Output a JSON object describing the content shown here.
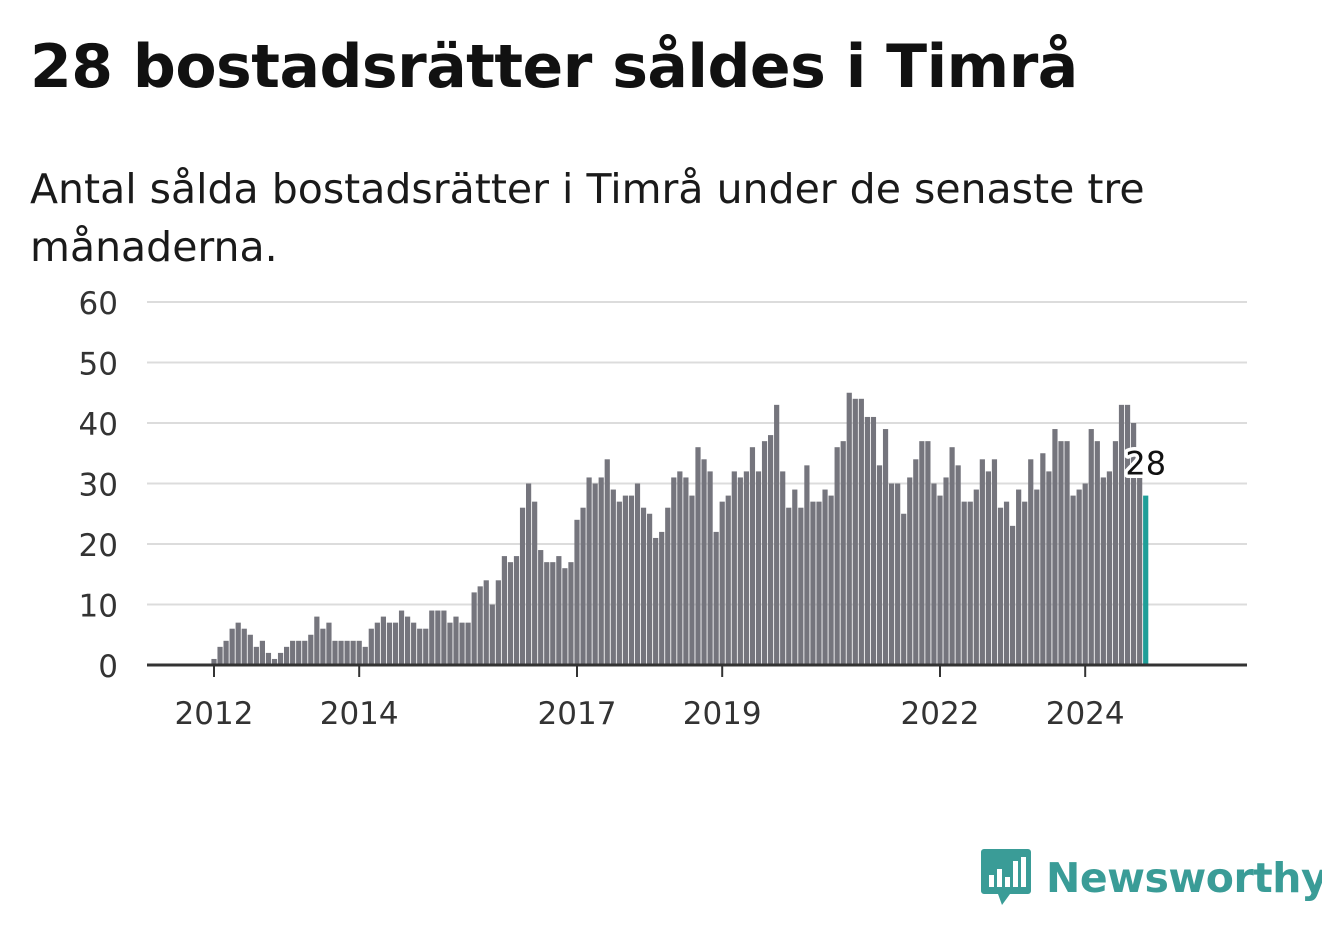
{
  "title": "28 bostadsrätter såldes i Timrå",
  "subtitle": "Antal sålda bostadsrätter i Timrå under de senaste tre månaderna.",
  "brand": {
    "name": "Newsworthy",
    "icon": "newsworthy-logo-icon",
    "color": "#3a9c97"
  },
  "colors": {
    "bar": "#75757d",
    "highlight": "#1f9e98",
    "grid": "#dcdcdc",
    "axis": "#333333"
  },
  "chart_data": {
    "type": "bar",
    "title": "",
    "xlabel": "",
    "ylabel": "",
    "ylim": [
      0,
      60
    ],
    "yticks": [
      0,
      10,
      20,
      30,
      40,
      50,
      60
    ],
    "grid": true,
    "legend": "none",
    "start_month": "2011-03",
    "xtick_labels": [
      {
        "label": "2012",
        "month": "2012-01"
      },
      {
        "label": "2014",
        "month": "2014-01"
      },
      {
        "label": "2017",
        "month": "2017-01"
      },
      {
        "label": "2019",
        "month": "2019-01"
      },
      {
        "label": "2022",
        "month": "2022-01"
      },
      {
        "label": "2024",
        "month": "2024-01"
      }
    ],
    "values": [
      0,
      0,
      0,
      0,
      0,
      0,
      0,
      0,
      0,
      0,
      1,
      3,
      4,
      6,
      7,
      6,
      5,
      3,
      4,
      2,
      1,
      2,
      3,
      4,
      4,
      4,
      5,
      8,
      6,
      7,
      4,
      4,
      4,
      4,
      4,
      3,
      6,
      7,
      8,
      7,
      7,
      9,
      8,
      7,
      6,
      6,
      9,
      9,
      9,
      7,
      8,
      7,
      7,
      12,
      13,
      14,
      10,
      14,
      18,
      17,
      18,
      26,
      30,
      27,
      19,
      17,
      17,
      18,
      16,
      17,
      24,
      26,
      31,
      30,
      31,
      34,
      29,
      27,
      28,
      28,
      30,
      26,
      25,
      21,
      22,
      26,
      31,
      32,
      31,
      28,
      36,
      34,
      32,
      22,
      27,
      28,
      32,
      31,
      32,
      36,
      32,
      37,
      38,
      43,
      32,
      26,
      29,
      26,
      33,
      27,
      27,
      29,
      28,
      36,
      37,
      45,
      44,
      44,
      41,
      41,
      33,
      39,
      30,
      30,
      25,
      31,
      34,
      37,
      37,
      30,
      28,
      31,
      36,
      33,
      27,
      27,
      29,
      34,
      32,
      34,
      26,
      27,
      23,
      29,
      27,
      34,
      29,
      35,
      32,
      39,
      37,
      37,
      28,
      29,
      30,
      39,
      37,
      31,
      32,
      37,
      43,
      43,
      40,
      31,
      28
    ],
    "last_value_label": "28"
  }
}
